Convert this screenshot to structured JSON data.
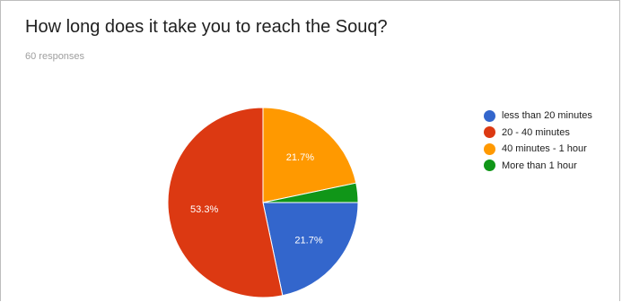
{
  "title": "How long does it take you to reach the Souq?",
  "responses": "60 responses",
  "chart_data": {
    "type": "pie",
    "title": "How long does it take you to reach the Souq?",
    "categories": [
      "less than 20 minutes",
      "20 - 40 minutes",
      "40 minutes - 1 hour",
      "More than 1 hour"
    ],
    "values": [
      21.7,
      53.3,
      21.7,
      3.3
    ],
    "colors": [
      "#3366cc",
      "#dc3912",
      "#ff9900",
      "#109618"
    ],
    "slice_labels": [
      "21.7%",
      "53.3%",
      "21.7%",
      ""
    ],
    "legend_position": "right"
  }
}
